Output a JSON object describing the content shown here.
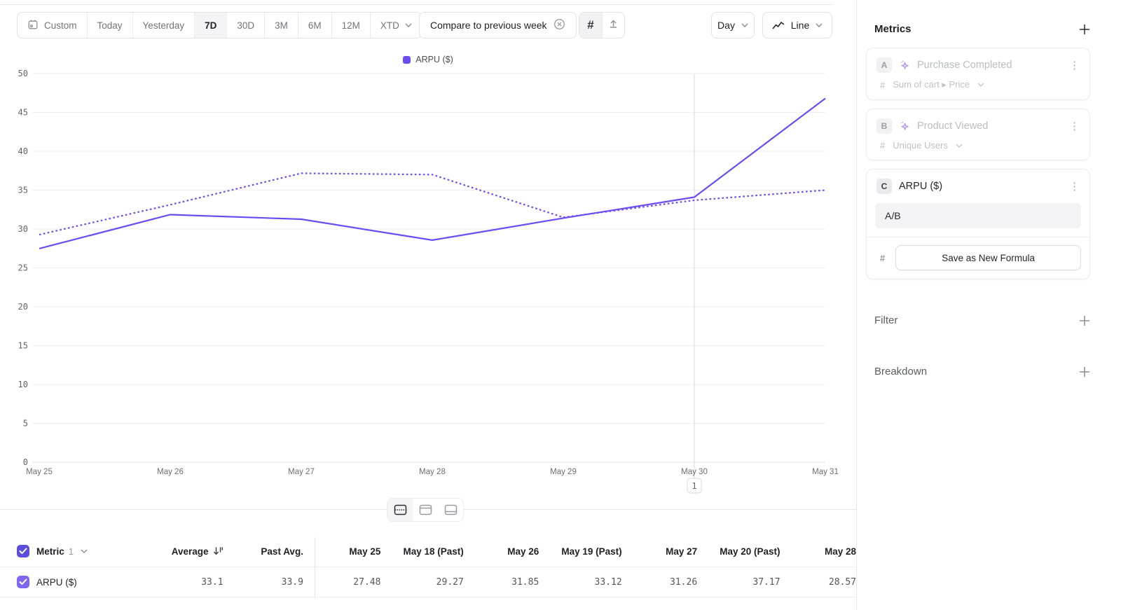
{
  "colors": {
    "accent": "#6C4BF4",
    "checkbox_header": "#5b4edd",
    "checkbox_row": "#7e66f0"
  },
  "toolbar": {
    "date_ranges": [
      "Custom",
      "Today",
      "Yesterday",
      "7D",
      "30D",
      "3M",
      "6M",
      "12M",
      "XTD"
    ],
    "selected_range": "7D",
    "compare_button": "Compare to previous week",
    "granularity_label": "Day",
    "chart_type_label": "Line"
  },
  "legend": {
    "label": "ARPU ($)"
  },
  "chart_data": {
    "type": "line",
    "x": [
      "May 25",
      "May 26",
      "May 27",
      "May 28",
      "May 29",
      "May 30",
      "May 31"
    ],
    "series": [
      {
        "name": "ARPU ($)",
        "style": "solid",
        "values": [
          27.48,
          31.85,
          31.26,
          28.57,
          31.4,
          34.1,
          46.8
        ]
      },
      {
        "name": "ARPU ($) previous week",
        "style": "dotted",
        "values": [
          29.27,
          33.12,
          37.17,
          37.0,
          31.5,
          33.7,
          35.0
        ]
      }
    ],
    "ylim": [
      0,
      50
    ],
    "ytick_step": 5,
    "grid": "horizontal",
    "legend_position": "top-center",
    "annotation_marker": {
      "x_index": 5,
      "label": "1"
    },
    "title": "",
    "xlabel": "",
    "ylabel": ""
  },
  "layout_toggle": {
    "options": [
      "split-view",
      "chart-only",
      "table-only"
    ],
    "selected": "split-view"
  },
  "table": {
    "metric_header": "Metric",
    "metric_index": "1",
    "headers": [
      "Average",
      "Past Avg.",
      "May 25",
      "May 18 (Past)",
      "May 26",
      "May 19 (Past)",
      "May 27",
      "May 20 (Past)",
      "May 28"
    ],
    "row": {
      "label": "ARPU ($)",
      "values": [
        "33.1",
        "33.9",
        "27.48",
        "29.27",
        "31.85",
        "33.12",
        "31.26",
        "37.17",
        "28.57"
      ]
    }
  },
  "sidebar": {
    "metrics_title": "Metrics",
    "cards": [
      {
        "badge": "A",
        "title": "Purchase Completed",
        "measure": "Sum of cart ▸ Price"
      },
      {
        "badge": "B",
        "title": "Product Viewed",
        "measure": "Unique Users"
      },
      {
        "badge": "C",
        "title": "ARPU ($)",
        "formula": "A/B",
        "action": "Save as New Formula"
      }
    ],
    "filter_title": "Filter",
    "breakdown_title": "Breakdown"
  }
}
